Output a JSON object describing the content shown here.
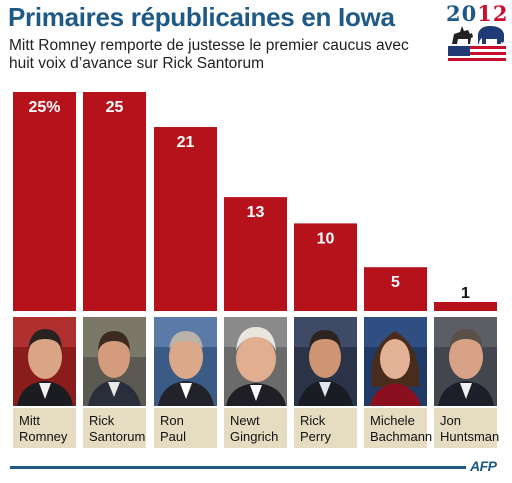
{
  "header": {
    "title": "Primaires républicaines en Iowa",
    "subtitle": "Mitt Romney remporte de justesse le premier caucus avec huit voix d’avance sur Rick Santorum"
  },
  "logo": {
    "year_prefix": "20",
    "year_suffix": "12"
  },
  "credit": "AFP",
  "colors": {
    "bar": "#b5121b",
    "title": "#1f5a86",
    "name_card": "#e6dcc1"
  },
  "chart_data": {
    "type": "bar",
    "title": "Primaires républicaines en Iowa",
    "categories": [
      "Mitt Romney",
      "Rick Santorum",
      "Ron Paul",
      "Newt Gingrich",
      "Rick Perry",
      "Michele Bachmann",
      "Jon Huntsman"
    ],
    "values": [
      25,
      25,
      21,
      13,
      10,
      5,
      1
    ],
    "value_labels": [
      "25%",
      "25",
      "21",
      "13",
      "10",
      "5",
      "1"
    ],
    "ylim": [
      0,
      25
    ],
    "grid": false,
    "legend": "none"
  },
  "candidates": [
    {
      "first": "Mitt",
      "last": "Romney",
      "icon": "person-photo-icon"
    },
    {
      "first": "Rick",
      "last": "Santorum",
      "icon": "person-photo-icon"
    },
    {
      "first": "Ron",
      "last": "Paul",
      "icon": "person-photo-icon"
    },
    {
      "first": "Newt",
      "last": "Gingrich",
      "icon": "person-photo-icon"
    },
    {
      "first": "Rick",
      "last": "Perry",
      "icon": "person-photo-icon"
    },
    {
      "first": "Michele",
      "last": "Bachmann",
      "icon": "person-photo-icon"
    },
    {
      "first": "Jon",
      "last": "Huntsman",
      "icon": "person-photo-icon"
    }
  ]
}
